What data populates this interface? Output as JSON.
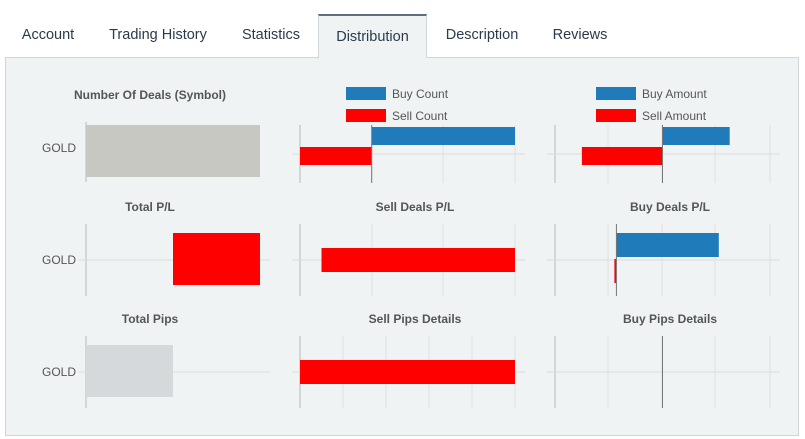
{
  "tabs": [
    {
      "label": "Account"
    },
    {
      "label": "Trading History"
    },
    {
      "label": "Statistics"
    },
    {
      "label": "Distribution"
    },
    {
      "label": "Description"
    },
    {
      "label": "Reviews"
    }
  ],
  "colors": {
    "blue": "#1f7bb9",
    "red": "#ff0000",
    "gray": "#c8c8c2",
    "lightgray": "#d6d9db",
    "grid": "#dddddd"
  },
  "chart_data": [
    {
      "type": "bar",
      "title": "Number Of Deals (Symbol)",
      "categories": [
        "GOLD"
      ],
      "series": [
        {
          "values": [
            1
          ],
          "color": "gray"
        }
      ],
      "xlim": [
        0,
        1
      ]
    },
    {
      "type": "bar",
      "title": "",
      "legend": [
        "Buy Count",
        "Sell Count"
      ],
      "series": [
        {
          "name": "Buy Count",
          "values": [
            2
          ],
          "color": "blue"
        },
        {
          "name": "Sell Count",
          "values": [
            -1
          ],
          "color": "red"
        }
      ],
      "xlim": [
        -1,
        2
      ]
    },
    {
      "type": "bar",
      "title": "",
      "legend": [
        "Buy Amount",
        "Sell Amount"
      ],
      "series": [
        {
          "name": "Buy Amount",
          "values": [
            1.25
          ],
          "color": "blue"
        },
        {
          "name": "Sell Amount",
          "values": [
            -1.5
          ],
          "color": "red"
        }
      ],
      "xlim": [
        -2,
        2
      ]
    },
    {
      "type": "bar",
      "title": "Total P/L",
      "categories": [
        "GOLD"
      ],
      "series": [
        {
          "values": [
            -1
          ],
          "color": "red"
        }
      ],
      "xlim": [
        -2,
        0
      ]
    },
    {
      "type": "bar",
      "title": "Sell Deals P/L",
      "series": [
        {
          "values": [
            -2.7
          ],
          "color": "red"
        }
      ],
      "xlim": [
        -3,
        0
      ]
    },
    {
      "type": "bar",
      "title": "Buy Deals P/L",
      "series": [
        {
          "values": [
            1
          ],
          "color": "blue"
        },
        {
          "values": [
            -0.02
          ],
          "color": "red"
        }
      ],
      "xlim": [
        -0.6,
        1.5
      ]
    },
    {
      "type": "bar",
      "title": "Total Pips",
      "categories": [
        "GOLD"
      ],
      "series": [
        {
          "values": [
            1
          ],
          "color": "lightgray"
        }
      ],
      "xlim": [
        0,
        2
      ]
    },
    {
      "type": "bar",
      "title": "Sell Pips Details",
      "series": [
        {
          "values": [
            1
          ],
          "color": "red"
        }
      ],
      "xlim": [
        0,
        1
      ]
    },
    {
      "type": "bar",
      "title": "Buy Pips Details",
      "series": [],
      "xlim": [
        -1,
        1
      ]
    }
  ]
}
